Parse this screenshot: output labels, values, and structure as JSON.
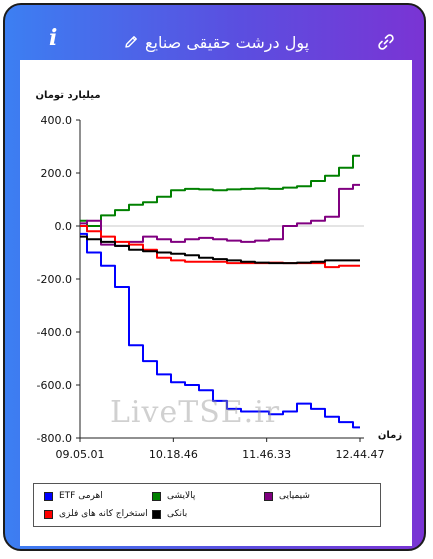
{
  "app": {
    "title": "پول درشت حقیقی صنایع",
    "info_icon": "i"
  },
  "watermark": "LiveTSE.ir",
  "chart_data": {
    "type": "line",
    "ylabel": "میلیارد تومان",
    "xlabel": "زمان",
    "ylim": [
      -800,
      400
    ],
    "yticks": [
      "400.0",
      "200.0",
      "0.0",
      "-200.0",
      "-400.0",
      "-600.0",
      "-800.0"
    ],
    "xticks": [
      "09.05.01",
      "10.18.46",
      "11.46.33",
      "12.44.47"
    ],
    "x": [
      0,
      5,
      10,
      15,
      20,
      25,
      30,
      35,
      40,
      45,
      50,
      55,
      60,
      65,
      70,
      75,
      80,
      85,
      90,
      95,
      100
    ],
    "series": [
      {
        "name": "ETF اهرمی",
        "color": "#0000ff",
        "values": [
          -30,
          -100,
          -150,
          -230,
          -450,
          -510,
          -560,
          -590,
          -600,
          -620,
          -660,
          -690,
          -700,
          -700,
          -710,
          -700,
          -670,
          -690,
          -720,
          -740,
          -760
        ]
      },
      {
        "name": "پالایشی",
        "color": "#008000",
        "values": [
          20,
          0,
          40,
          60,
          80,
          90,
          110,
          135,
          140,
          138,
          135,
          138,
          140,
          142,
          140,
          145,
          150,
          170,
          190,
          220,
          265
        ]
      },
      {
        "name": "شیمیایی",
        "color": "#800080",
        "values": [
          10,
          20,
          -70,
          -75,
          -60,
          -40,
          -50,
          -60,
          -50,
          -45,
          -50,
          -55,
          -60,
          -55,
          -50,
          0,
          10,
          20,
          35,
          140,
          155
        ]
      },
      {
        "name": "استخراج کانه های فلزی",
        "color": "#ff0000",
        "values": [
          0,
          -20,
          -40,
          -60,
          -70,
          -90,
          -120,
          -130,
          -135,
          -135,
          -135,
          -140,
          -140,
          -140,
          -138,
          -140,
          -140,
          -140,
          -155,
          -150,
          -150
        ]
      },
      {
        "name": "بانکی",
        "color": "#000000",
        "values": [
          -40,
          -50,
          -60,
          -75,
          -90,
          -95,
          -100,
          -105,
          -110,
          -120,
          -125,
          -130,
          -135,
          -138,
          -140,
          -140,
          -138,
          -135,
          -130,
          -130,
          -130
        ]
      }
    ],
    "legend_position": "bottom"
  },
  "colors": {
    "frame_start": "#3c7ff2",
    "frame_end": "#7a34d4",
    "grid_zero": "#c8c8c8"
  }
}
